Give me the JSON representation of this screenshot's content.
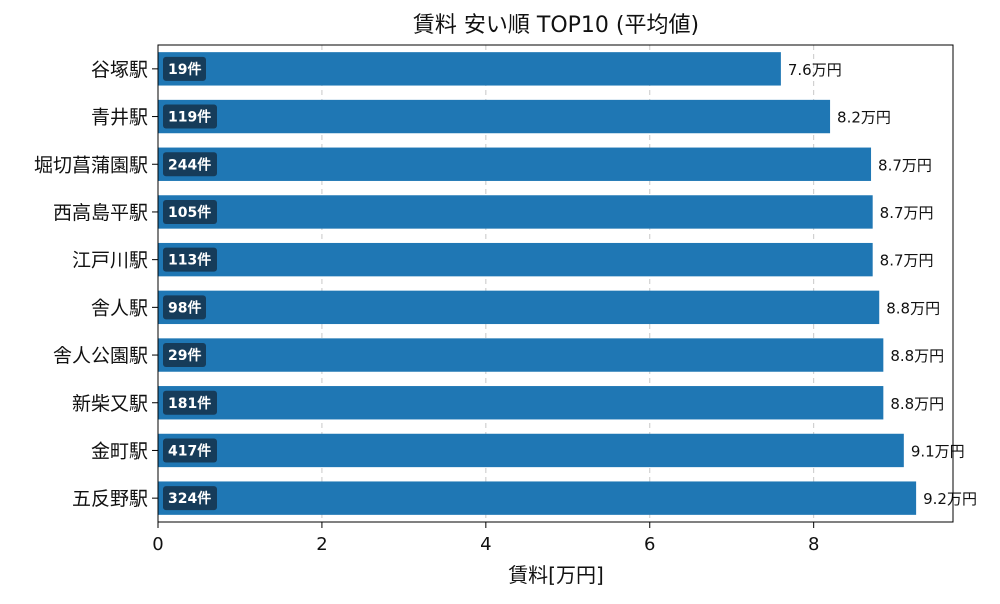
{
  "chart_data": {
    "type": "bar",
    "orientation": "horizontal",
    "title": "賃料 安い順 TOP10 (平均値)",
    "xlabel": "賃料[万円]",
    "ylabel": "",
    "xlim": [
      0,
      9.7
    ],
    "xticks": [
      0,
      2,
      4,
      6,
      8
    ],
    "grid": "vertical-dashed",
    "bar_color": "#1f77b4",
    "count_badge_color": "#163c5a",
    "categories": [
      "谷塚駅",
      "青井駅",
      "堀切菖蒲園駅",
      "西高島平駅",
      "江戸川駅",
      "舎人駅",
      "舎人公園駅",
      "新柴又駅",
      "金町駅",
      "五反野駅"
    ],
    "values": [
      7.6,
      8.2,
      8.7,
      8.72,
      8.72,
      8.8,
      8.85,
      8.85,
      9.1,
      9.25
    ],
    "value_labels": [
      "7.6万円",
      "8.2万円",
      "8.7万円",
      "8.7万円",
      "8.7万円",
      "8.8万円",
      "8.8万円",
      "8.8万円",
      "9.1万円",
      "9.2万円"
    ],
    "count_labels": [
      "19件",
      "119件",
      "244件",
      "105件",
      "113件",
      "98件",
      "29件",
      "181件",
      "417件",
      "324件"
    ]
  }
}
